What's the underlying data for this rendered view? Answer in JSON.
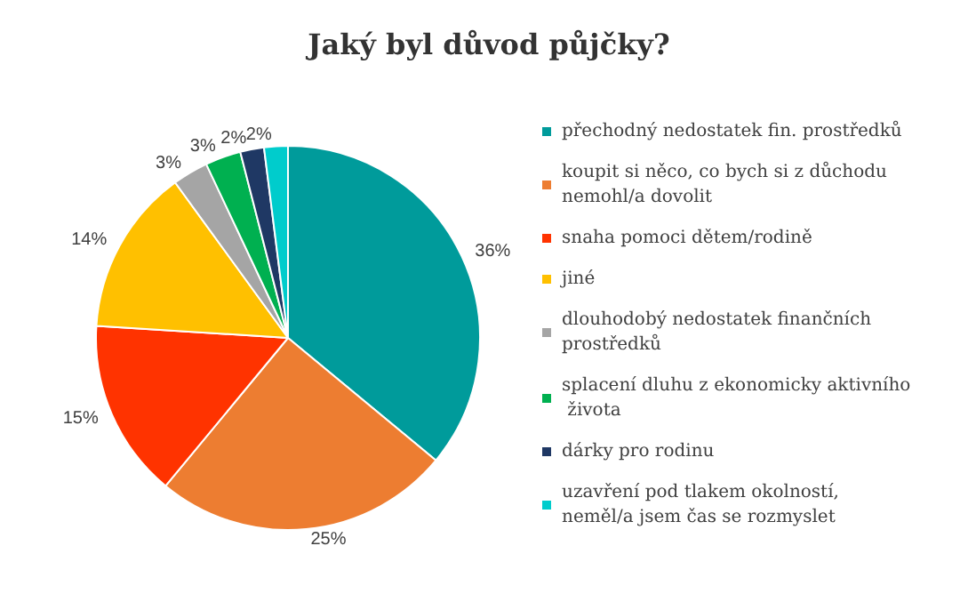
{
  "chart_data": {
    "type": "pie",
    "title": "Jaký byl důvod půjčky?",
    "categories": [
      "přechodný nedostatek fin. prostředků",
      "koupit si něco, co bych si z důchodu nemohl/a dovolit",
      "snaha pomoci dětem/rodině",
      "jiné",
      "dlouhodobý nedostatek finančních prostředků",
      "splacení dluhu z ekonomicky aktivního života",
      "dárky pro rodinu",
      "uzavření pod tlakem okolností, neměl/a jsem čas se rozmyslet"
    ],
    "values": [
      36,
      25,
      15,
      14,
      3,
      3,
      2,
      2
    ],
    "value_labels": [
      "36%",
      "25%",
      "15%",
      "14%",
      "3%",
      "3%",
      "2%",
      "2%"
    ],
    "colors": [
      "#009b9b",
      "#ed7d31",
      "#ff3300",
      "#ffc000",
      "#a5a5a5",
      "#00b050",
      "#1f3864",
      "#00cccc"
    ],
    "legend": "right"
  }
}
